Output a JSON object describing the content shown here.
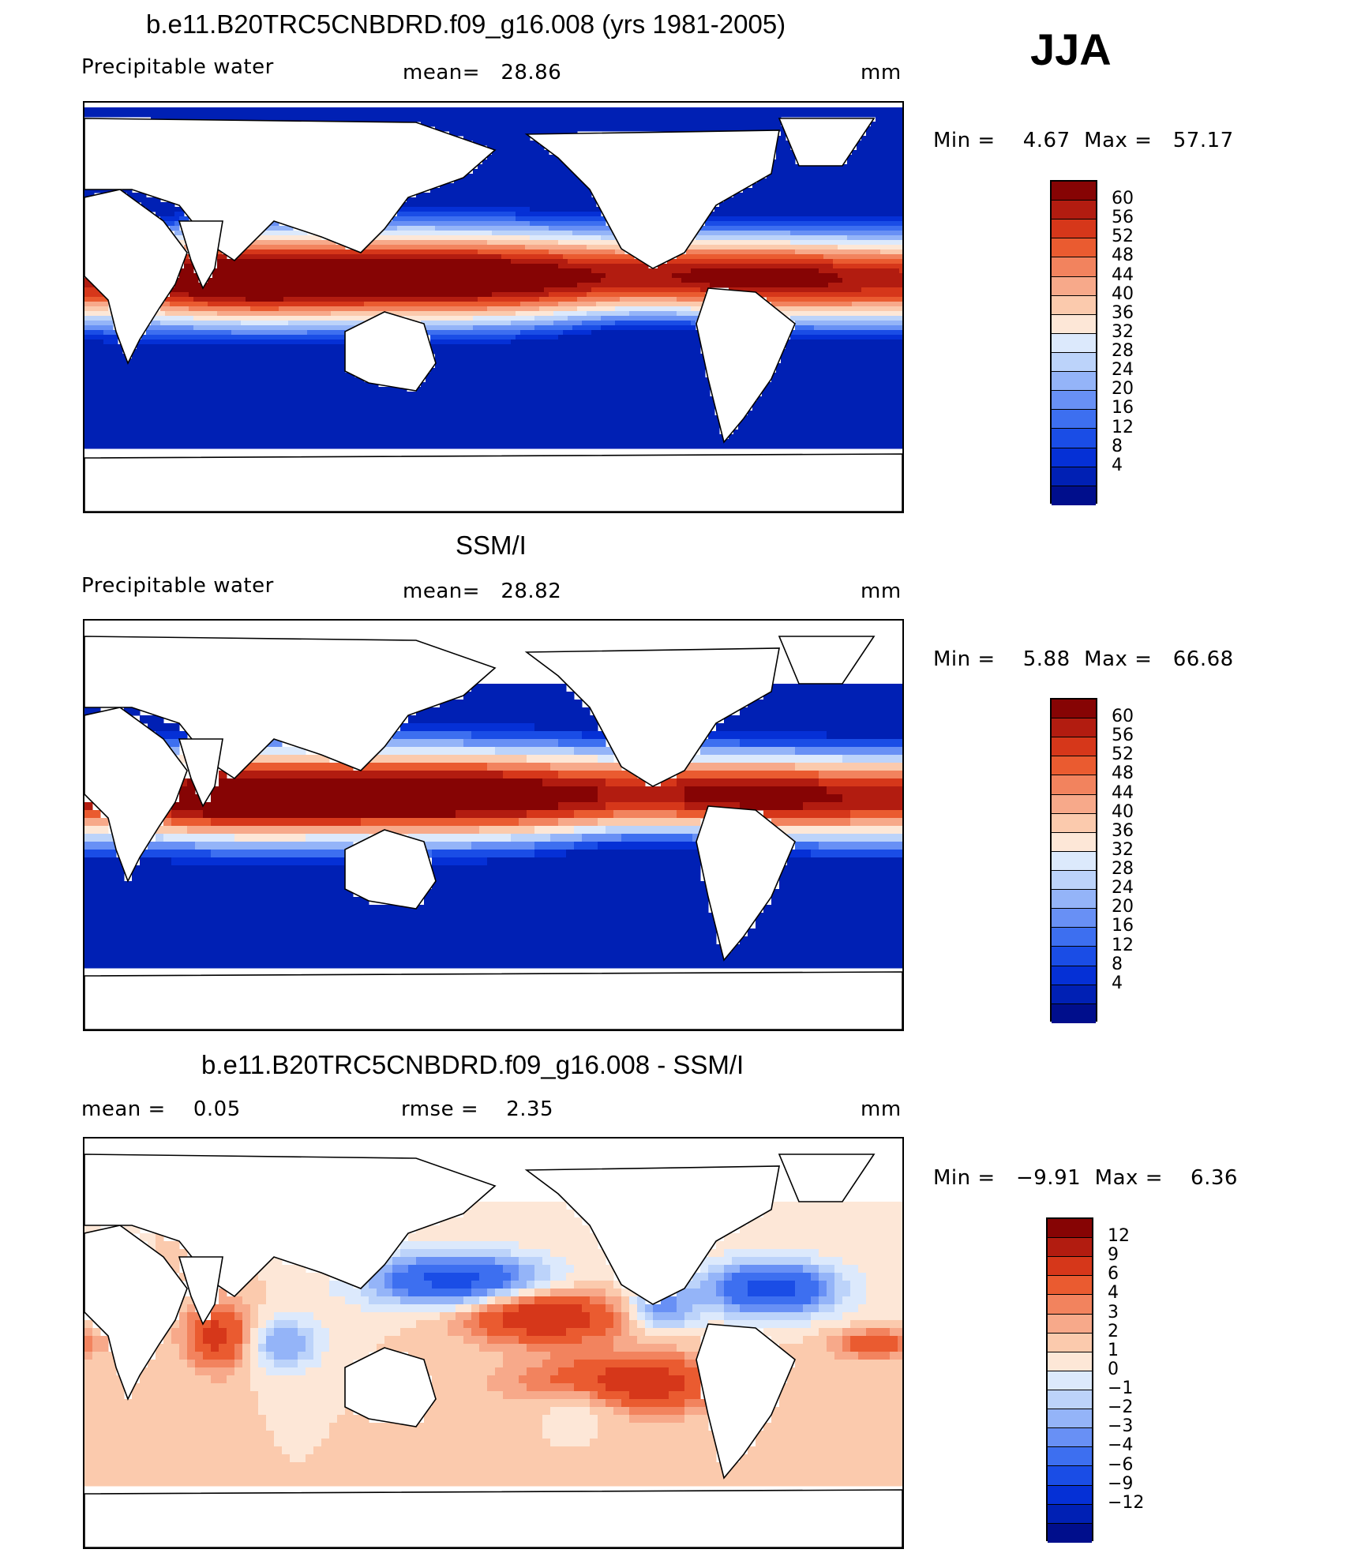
{
  "season": "JJA",
  "colors": {
    "abs_scale": [
      "#000e8c",
      "#0020b4",
      "#0530d6",
      "#1a4de6",
      "#3d6ff0",
      "#6890f5",
      "#94b4f8",
      "#bcd3fa",
      "#dce9fc",
      "#fde7d7",
      "#fbcaad",
      "#f7a98a",
      "#f2835e",
      "#ea5b30",
      "#d6371a",
      "#b21c10",
      "#860404"
    ],
    "diff_scale": [
      "#000e8c",
      "#0020b4",
      "#0530d6",
      "#1a4de6",
      "#3d6ff0",
      "#6890f5",
      "#94b4f8",
      "#bcd3fa",
      "#dce9fc",
      "#fde7d7",
      "#fbcaad",
      "#f7a98a",
      "#f2835e",
      "#ea5b30",
      "#d6371a",
      "#b21c10",
      "#860404"
    ],
    "land": "#ffffff",
    "coast": "#000000"
  },
  "panels": [
    {
      "title": "b.e11.B20TRC5CNBDRD.f09_g16.008 (yrs 1981-2005)",
      "variable": "Precipitable water",
      "stat_text": "mean=   28.86",
      "units": "mm",
      "minmax": "Min =    4.67  Max =   57.17",
      "levels": [
        "60",
        "56",
        "52",
        "48",
        "44",
        "40",
        "36",
        "32",
        "28",
        "24",
        "20",
        "16",
        "12",
        "8",
        "4"
      ],
      "kind": "model"
    },
    {
      "title": "SSM/I",
      "variable": "Precipitable water",
      "stat_text": "mean=   28.82",
      "units": "mm",
      "minmax": "Min =    5.88  Max =   66.68",
      "levels": [
        "60",
        "56",
        "52",
        "48",
        "44",
        "40",
        "36",
        "32",
        "28",
        "24",
        "20",
        "16",
        "12",
        "8",
        "4"
      ],
      "kind": "obs"
    },
    {
      "title": "b.e11.B20TRC5CNBDRD.f09_g16.008 - SSM/I",
      "variable": "mean =    0.05",
      "stat_text": "rmse =    2.35",
      "units": "mm",
      "minmax": "Min =   −9.91  Max =    6.36",
      "levels": [
        "12",
        "9",
        "6",
        "4",
        "3",
        "2",
        "1",
        "0",
        "−1",
        "−2",
        "−3",
        "−4",
        "−6",
        "−9",
        "−12"
      ],
      "kind": "diff"
    }
  ]
}
